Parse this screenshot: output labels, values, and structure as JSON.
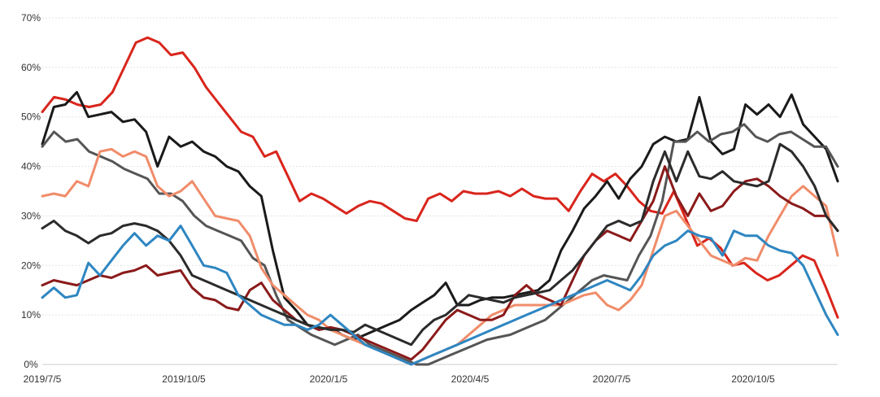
{
  "chart_data": {
    "type": "line",
    "title": "",
    "xlabel": "",
    "ylabel": "",
    "x_ticks": [
      "2019/7/5",
      "2019/10/5",
      "2020/1/5",
      "2020/4/5",
      "2020/7/5",
      "2020/10/5"
    ],
    "y_ticks": [
      "0%",
      "10%",
      "20%",
      "30%",
      "40%",
      "50%",
      "60%",
      "70%"
    ],
    "ylim": [
      0,
      70
    ],
    "grid": true,
    "legend": "none",
    "series": [
      {
        "name": "red",
        "color": "#d9251c",
        "values": [
          51,
          54,
          53.5,
          52.5,
          52,
          52.5,
          55,
          60,
          65,
          66,
          65,
          62.5,
          63,
          60,
          56,
          53,
          50,
          47,
          46,
          42,
          43,
          38,
          33,
          34.5,
          33.5,
          32,
          30.5,
          32,
          33,
          32.5,
          31,
          29.5,
          29,
          33.5,
          34.5,
          33,
          35,
          34.5,
          34.5,
          35,
          34,
          35.5,
          34,
          33.5,
          33.5,
          31,
          35,
          38.5,
          37,
          38.5,
          36,
          33,
          31,
          30.5,
          35,
          29.5,
          24,
          25.5,
          23.5,
          20,
          20.5,
          18.5,
          17,
          18,
          20,
          22,
          21,
          15.5,
          9.5
        ]
      },
      {
        "name": "black-1",
        "color": "#1a1a1a",
        "values": [
          44.5,
          52,
          52.5,
          55,
          50,
          50.5,
          51,
          49,
          49.5,
          47,
          40,
          46,
          44,
          45,
          43,
          42,
          40,
          39,
          36,
          34,
          23,
          13.5,
          11,
          8,
          7,
          7.5,
          6,
          5,
          6,
          7,
          8,
          9,
          11,
          12.5,
          14,
          16.5,
          12,
          12,
          13,
          13.5,
          13.5,
          14,
          14.5,
          15,
          17,
          23,
          27,
          31.5,
          34,
          37,
          33.5,
          37.5,
          40,
          44.5,
          46,
          45,
          45.5,
          54,
          45,
          42.5,
          43.5,
          52.5,
          50.5,
          52.5,
          50,
          54.5,
          48.5,
          46,
          43.5,
          37
        ]
      },
      {
        "name": "gray",
        "color": "#555555",
        "values": [
          44,
          47,
          45,
          45.5,
          43,
          42,
          41,
          39.5,
          38.5,
          37.5,
          34.5,
          34.5,
          33,
          30,
          28,
          27,
          26,
          25,
          21.5,
          20,
          14,
          9,
          7.5,
          6,
          5,
          4,
          5,
          6,
          4,
          3,
          2,
          1,
          0,
          0,
          1,
          2,
          3,
          4,
          5,
          5.5,
          6,
          7,
          8,
          9,
          11,
          13,
          15,
          17,
          18,
          17.5,
          17,
          22,
          26,
          33,
          45,
          45,
          47,
          45,
          46.5,
          47,
          48.5,
          46,
          45,
          46.5,
          47,
          45.5,
          44,
          44,
          40
        ]
      },
      {
        "name": "salmon",
        "color": "#f08c6a",
        "values": [
          34,
          34.5,
          34,
          37,
          36,
          43,
          43.5,
          42,
          43,
          42,
          36,
          34,
          35,
          37,
          33.5,
          30,
          29.5,
          29,
          26,
          19.5,
          16,
          14,
          12,
          10,
          9,
          7,
          6,
          5,
          4,
          3,
          2,
          1,
          0,
          1,
          2,
          3,
          4,
          6,
          8,
          10,
          11,
          12,
          12,
          12,
          12,
          12,
          13,
          14,
          14.5,
          12,
          11,
          13,
          16,
          23,
          30,
          31,
          28,
          25,
          22,
          21,
          20,
          21.5,
          21,
          26,
          30,
          34,
          36,
          34,
          32,
          22
        ]
      },
      {
        "name": "dark-red",
        "color": "#8b1a1a",
        "values": [
          16,
          17,
          16.5,
          16,
          17,
          18,
          17.5,
          18.5,
          19,
          20,
          18,
          18.5,
          19,
          15.5,
          13.5,
          13,
          11.5,
          11,
          15,
          16.5,
          13,
          11,
          9,
          8,
          7,
          7.5,
          7,
          6,
          5,
          4,
          3,
          2,
          1,
          3,
          6,
          9,
          11,
          10,
          9,
          9,
          10,
          14,
          16,
          14,
          13,
          12,
          17,
          22,
          25,
          27,
          26,
          25,
          29,
          33,
          40,
          34,
          30,
          34.5,
          31,
          32,
          35,
          37,
          37.5,
          36,
          34,
          32.5,
          31.5,
          30,
          30,
          27
        ]
      },
      {
        "name": "black-2",
        "color": "#2b2b2b",
        "values": [
          27.5,
          29,
          27,
          26,
          24.5,
          26,
          26.5,
          28,
          28.5,
          28,
          27,
          25,
          22,
          18,
          17,
          16,
          15,
          14,
          13,
          12,
          11,
          10,
          9,
          8,
          7.5,
          7,
          7,
          6.5,
          8,
          7,
          6,
          5,
          4,
          7,
          9,
          10,
          12,
          14,
          13.5,
          13,
          12.5,
          13.5,
          14,
          14.5,
          15,
          17,
          19,
          22,
          25,
          28,
          29,
          28,
          29,
          37,
          43,
          37,
          43,
          38,
          37.5,
          39,
          37,
          36.5,
          36,
          37,
          44.5,
          43,
          40,
          36,
          30,
          27
        ]
      },
      {
        "name": "blue",
        "color": "#2e86c1",
        "values": [
          13.5,
          15.5,
          13.5,
          14,
          20.5,
          18,
          21,
          24,
          26.5,
          24,
          26,
          25,
          28,
          24,
          20,
          19.5,
          18.5,
          14,
          12,
          10,
          9,
          8,
          8,
          7,
          8,
          10,
          8,
          6,
          4,
          3,
          2,
          1,
          0,
          1,
          2,
          3,
          4,
          5,
          6,
          7,
          8,
          9,
          10,
          11,
          12,
          13,
          14,
          15,
          16,
          17,
          16,
          15,
          18,
          22,
          24,
          25,
          27,
          26,
          25.5,
          22,
          27,
          26,
          26,
          24,
          23,
          22.5,
          20,
          15,
          10,
          6
        ]
      }
    ]
  }
}
